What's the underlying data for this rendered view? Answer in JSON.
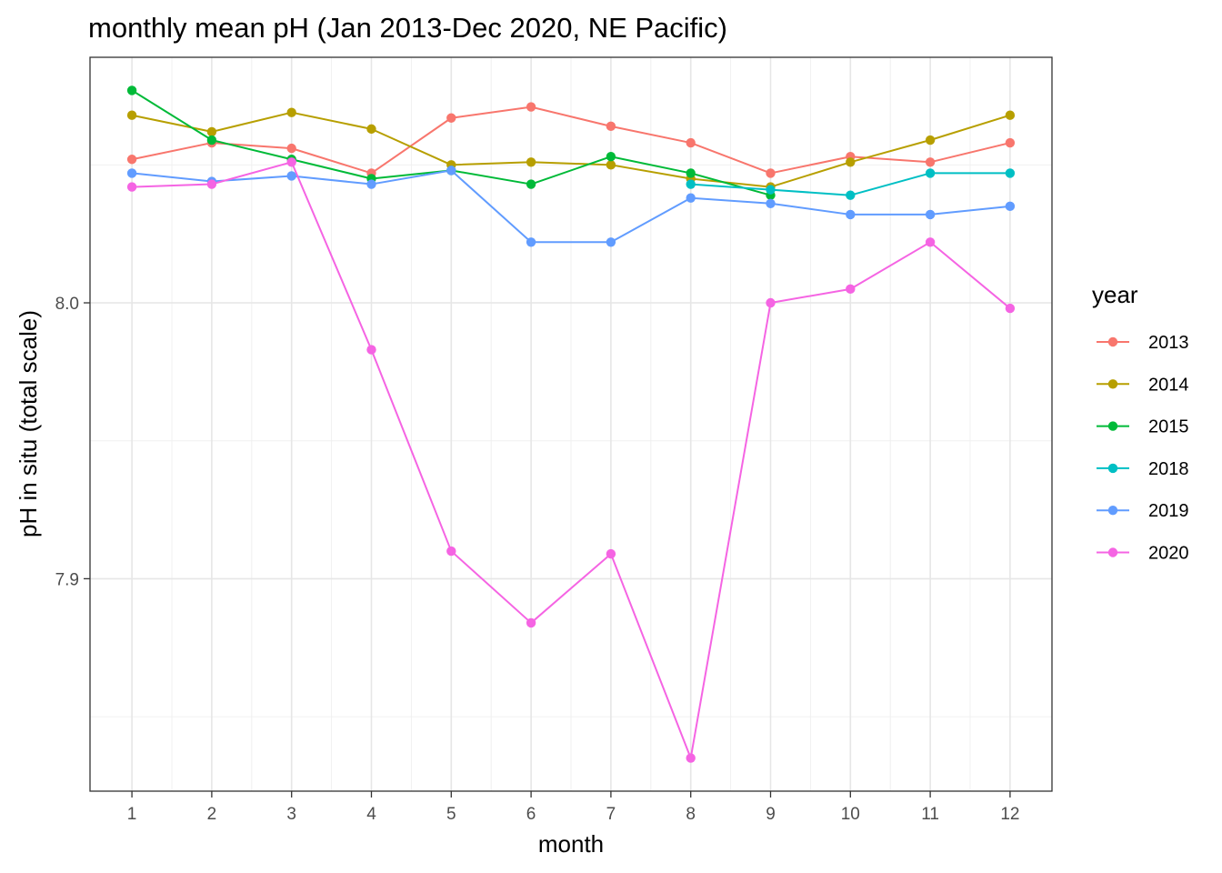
{
  "chart_data": {
    "type": "line",
    "title": "monthly mean pH (Jan 2013-Dec 2020, NE Pacific)",
    "xlabel": "month",
    "ylabel": "pH in situ (total scale)",
    "x": [
      1,
      2,
      3,
      4,
      5,
      6,
      7,
      8,
      9,
      10,
      11,
      12
    ],
    "x_tick_labels": [
      "1",
      "2",
      "3",
      "4",
      "5",
      "6",
      "7",
      "8",
      "9",
      "10",
      "11",
      "12"
    ],
    "y_tick_labels": [
      "7.9",
      "8.0"
    ],
    "y_ticks": [
      7.9,
      8.0
    ],
    "y_minor_ticks": [
      7.85,
      7.95,
      8.05
    ],
    "x_minor_ticks": [
      1.5,
      2.5,
      3.5,
      4.5,
      5.5,
      6.5,
      7.5,
      8.5,
      9.5,
      10.5,
      11.5
    ],
    "xlim": [
      0.475,
      12.525
    ],
    "ylim": [
      7.823,
      8.089
    ],
    "grid": true,
    "legend": {
      "title": "year",
      "position": "right"
    },
    "series": [
      {
        "name": "2013",
        "color": "#F8766D",
        "values": [
          8.052,
          8.058,
          8.056,
          8.047,
          8.067,
          8.071,
          8.064,
          8.058,
          8.047,
          8.053,
          8.051,
          8.058
        ]
      },
      {
        "name": "2014",
        "color": "#B79F00",
        "values": [
          8.068,
          8.062,
          8.069,
          8.063,
          8.05,
          8.051,
          8.05,
          8.045,
          8.042,
          8.051,
          8.059,
          8.068
        ]
      },
      {
        "name": "2015",
        "color": "#00BA38",
        "values": [
          8.077,
          8.059,
          8.052,
          8.045,
          8.048,
          8.043,
          8.053,
          8.047,
          8.039,
          null,
          null,
          null
        ]
      },
      {
        "name": "2018",
        "color": "#00BFC4",
        "values": [
          null,
          null,
          null,
          null,
          null,
          null,
          null,
          8.043,
          8.041,
          8.039,
          8.047,
          8.047
        ]
      },
      {
        "name": "2019",
        "color": "#619CFF",
        "values": [
          8.047,
          8.044,
          8.046,
          8.043,
          8.048,
          8.022,
          8.022,
          8.038,
          8.036,
          8.032,
          8.032,
          8.035
        ]
      },
      {
        "name": "2020",
        "color": "#F564E3",
        "values": [
          8.042,
          8.043,
          8.051,
          7.983,
          7.91,
          7.884,
          7.909,
          7.835,
          8.0,
          8.005,
          8.022,
          7.998
        ]
      }
    ]
  }
}
